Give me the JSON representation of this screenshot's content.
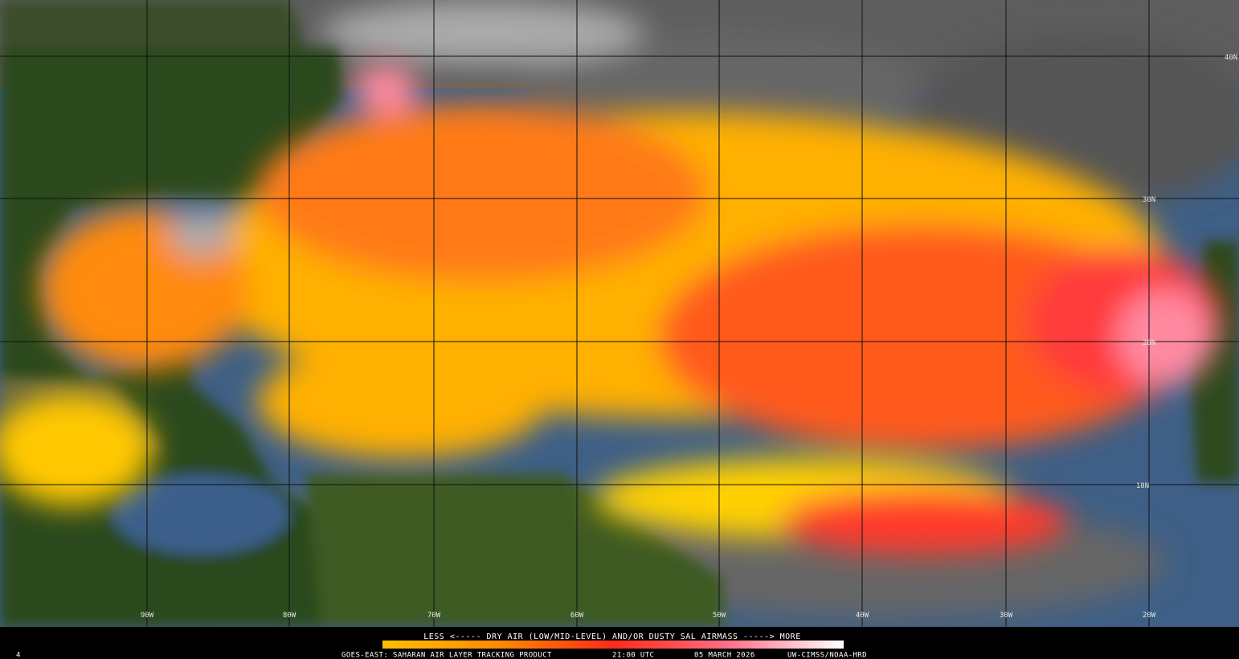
{
  "map": {
    "longitude_labels": [
      "90W",
      "80W",
      "70W",
      "60W",
      "50W",
      "40W",
      "30W",
      "20W"
    ],
    "latitude_labels": [
      "40N",
      "30N",
      "20N",
      "10N"
    ]
  },
  "legend": {
    "text": "LESS <----- DRY AIR (LOW/MID-LEVEL) AND/OR DUSTY SAL AIRMASS -----> MORE"
  },
  "footer": {
    "product": "GOES-EAST: SAHARAN AIR LAYER TRACKING PRODUCT",
    "time": "21:00 UTC",
    "date": "05 MARCH 2026",
    "credit": "UW-CIMSS/NOAA-HRD",
    "frame": "4"
  }
}
